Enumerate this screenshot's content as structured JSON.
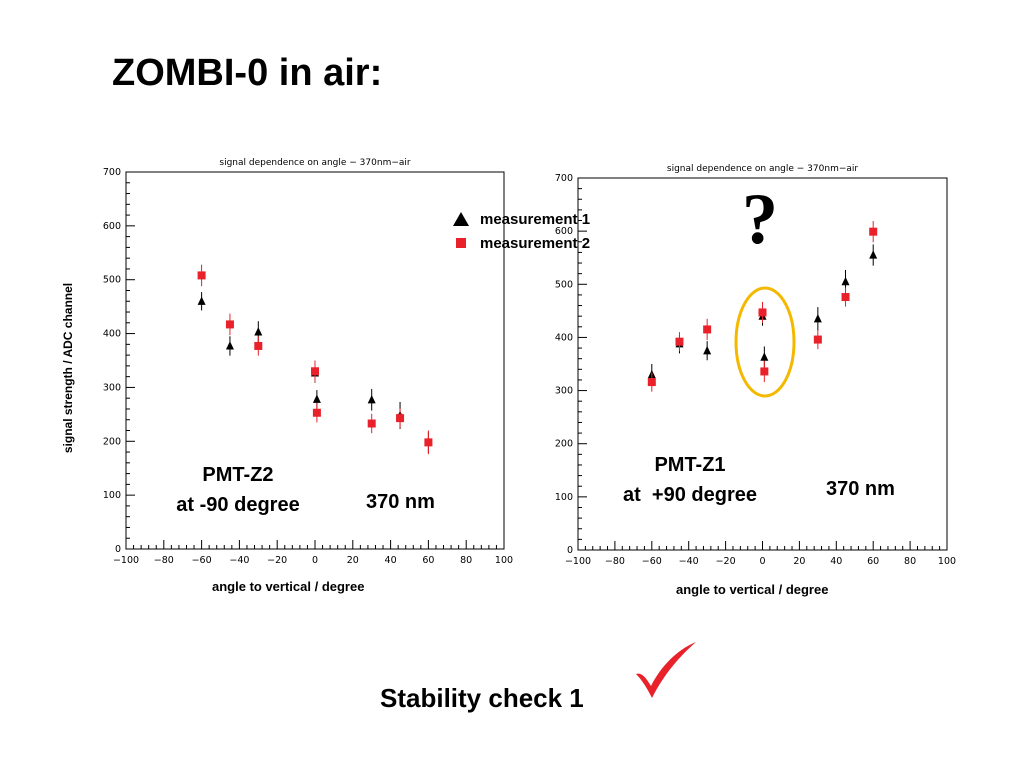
{
  "slide": {
    "title": "ZOMBI-0 in air:",
    "footer": "Stability check 1",
    "question_mark": "?",
    "legend": {
      "items": [
        {
          "label": "measurement 1",
          "marker": "triangle",
          "color": "#000000"
        },
        {
          "label": "measurement 2",
          "marker": "square",
          "color": "#e8212a"
        }
      ]
    },
    "highlight_color": "#f5b800",
    "check_color": "#e8212a"
  },
  "chart_data": [
    {
      "type": "scatter",
      "title": "signal dependence on angle − 370nm−air",
      "xlabel": "angle to vertical / degree",
      "ylabel": "signal strength / ADC channel",
      "xlim": [
        -100,
        100
      ],
      "ylim": [
        0,
        700
      ],
      "xticks": [
        -100,
        -80,
        -60,
        -40,
        -20,
        0,
        20,
        40,
        60,
        80,
        100
      ],
      "yticks": [
        0,
        100,
        200,
        300,
        400,
        500,
        600,
        700
      ],
      "annotations": [
        "PMT-Z2",
        "at -90 degree",
        "370 nm"
      ],
      "series": [
        {
          "name": "measurement 1",
          "marker": "triangle",
          "color": "#000000",
          "points": [
            {
              "x": -60,
              "y": 460,
              "err": 17
            },
            {
              "x": -45,
              "y": 377,
              "err": 18
            },
            {
              "x": -30,
              "y": 403,
              "err": 20
            },
            {
              "x": 0,
              "y": 327,
              "err": 18
            },
            {
              "x": 1,
              "y": 278,
              "err": 17
            },
            {
              "x": 30,
              "y": 277,
              "err": 20
            },
            {
              "x": 45,
              "y": 248,
              "err": 25
            },
            {
              "x": 60,
              "y": 198,
              "err": 20
            }
          ]
        },
        {
          "name": "measurement 2",
          "marker": "square",
          "color": "#e8212a",
          "points": [
            {
              "x": -60,
              "y": 508,
              "err": 20
            },
            {
              "x": -45,
              "y": 417,
              "err": 20
            },
            {
              "x": -30,
              "y": 377,
              "err": 18
            },
            {
              "x": 0,
              "y": 330,
              "err": 20
            },
            {
              "x": 1,
              "y": 253,
              "err": 18
            },
            {
              "x": 30,
              "y": 233,
              "err": 18
            },
            {
              "x": 45,
              "y": 243,
              "err": 18
            },
            {
              "x": 60,
              "y": 198,
              "err": 22
            }
          ]
        }
      ]
    },
    {
      "type": "scatter",
      "title": "signal dependence on angle − 370nm−air",
      "xlabel": "angle to vertical / degree",
      "ylabel": "",
      "xlim": [
        -100,
        100
      ],
      "ylim": [
        0,
        700
      ],
      "xticks": [
        -100,
        -80,
        -60,
        -40,
        -20,
        0,
        20,
        40,
        60,
        80,
        100
      ],
      "yticks": [
        0,
        100,
        200,
        300,
        400,
        500,
        600,
        700
      ],
      "annotations": [
        "PMT-Z1",
        "at  +90 degree",
        "370 nm"
      ],
      "series": [
        {
          "name": "measurement 1",
          "marker": "triangle",
          "color": "#000000",
          "points": [
            {
              "x": -60,
              "y": 330,
              "err": 20
            },
            {
              "x": -45,
              "y": 388,
              "err": 18
            },
            {
              "x": -30,
              "y": 375,
              "err": 18
            },
            {
              "x": 0,
              "y": 440,
              "err": 18
            },
            {
              "x": 1,
              "y": 363,
              "err": 20
            },
            {
              "x": 30,
              "y": 435,
              "err": 22
            },
            {
              "x": 45,
              "y": 505,
              "err": 22
            },
            {
              "x": 60,
              "y": 555,
              "err": 20
            }
          ]
        },
        {
          "name": "measurement 2",
          "marker": "square",
          "color": "#e8212a",
          "points": [
            {
              "x": -60,
              "y": 316,
              "err": 18
            },
            {
              "x": -45,
              "y": 392,
              "err": 18
            },
            {
              "x": -30,
              "y": 415,
              "err": 20
            },
            {
              "x": 0,
              "y": 447,
              "err": 20
            },
            {
              "x": 1,
              "y": 336,
              "err": 20
            },
            {
              "x": 30,
              "y": 396,
              "err": 18
            },
            {
              "x": 45,
              "y": 476,
              "err": 18
            },
            {
              "x": 60,
              "y": 599,
              "err": 20
            }
          ]
        }
      ]
    }
  ]
}
